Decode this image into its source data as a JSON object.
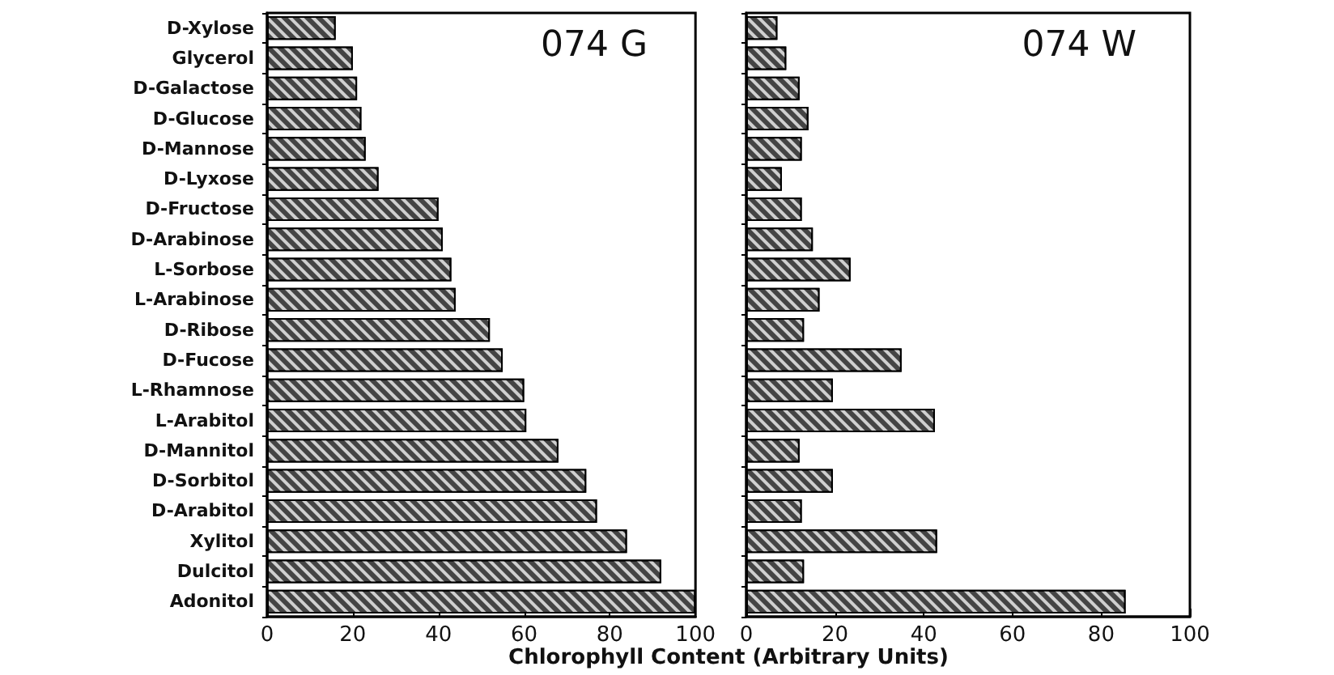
{
  "chart_data": [
    {
      "type": "bar",
      "orientation": "horizontal",
      "title": "074 G",
      "xlabel": "Chlorophyll Content (Arbitrary Units)",
      "categories": [
        "D-Xylose",
        "Glycerol",
        "D-Galactose",
        "D-Glucose",
        "D-Mannose",
        "D-Lyxose",
        "D-Fructose",
        "D-Arabinose",
        "L-Sorbose",
        "L-Arabinose",
        "D-Ribose",
        "D-Fucose",
        "L-Rhamnose",
        "L-Arabitol",
        "D-Mannitol",
        "D-Sorbitol",
        "D-Arabitol",
        "Xylitol",
        "Dulcitol",
        "Adonitol"
      ],
      "series": [
        {
          "color": "#444444",
          "values": [
            16,
            20,
            21,
            22,
            23,
            26,
            40,
            41,
            43,
            44,
            52,
            55,
            60,
            60.5,
            68,
            74.5,
            77,
            84,
            92,
            100
          ]
        }
      ],
      "xlim": [
        0,
        100
      ],
      "xticks": [
        0,
        20,
        40,
        60,
        80,
        100
      ],
      "grid": false
    },
    {
      "type": "bar",
      "orientation": "horizontal",
      "title": "074 W",
      "categories": [
        null,
        null,
        null,
        null,
        null,
        null,
        null,
        null,
        null,
        null,
        null,
        null,
        null,
        null,
        null,
        null,
        null,
        null,
        null,
        null
      ],
      "series": [
        {
          "color": "#444444",
          "values": [
            7,
            9,
            12,
            14,
            12.5,
            8,
            12.5,
            15,
            23.5,
            16.5,
            13,
            35,
            19.5,
            42.5,
            12,
            19.5,
            12.5,
            43,
            13,
            85.5
          ]
        }
      ],
      "xlim": [
        0,
        100
      ],
      "xticks": [
        0,
        20,
        40,
        60,
        80,
        100
      ],
      "grid": false,
      "tick_labels": "x"
    }
  ]
}
